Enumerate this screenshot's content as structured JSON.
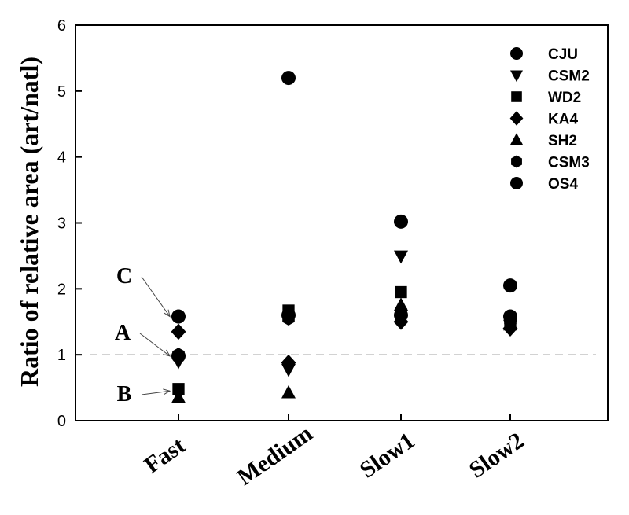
{
  "chart_data": {
    "type": "scatter",
    "title": "",
    "xlabel": "",
    "ylabel": "Ratio of relative area (art/natl)",
    "categories": [
      "Fast",
      "Medium",
      "Slow1",
      "Slow2"
    ],
    "ylim": [
      0,
      6
    ],
    "yticks": [
      0,
      1,
      2,
      3,
      4,
      5,
      6
    ],
    "reference_line": 1,
    "legend_position": "top-right",
    "series": [
      {
        "name": "CJU",
        "marker": "circle",
        "values": [
          1.58,
          5.2,
          3.02,
          2.05
        ]
      },
      {
        "name": "CSM2",
        "marker": "tri-down",
        "values": [
          0.9,
          0.78,
          2.5,
          1.45
        ]
      },
      {
        "name": "WD2",
        "marker": "square",
        "values": [
          0.48,
          1.67,
          1.95,
          1.5
        ]
      },
      {
        "name": "KA4",
        "marker": "diamond",
        "values": [
          1.35,
          0.88,
          1.5,
          1.4
        ]
      },
      {
        "name": "SH2",
        "marker": "tri-up",
        "values": [
          0.35,
          0.42,
          1.75,
          1.45
        ]
      },
      {
        "name": "CSM3",
        "marker": "hexagon",
        "values": [
          1.0,
          1.55,
          1.65,
          1.52
        ]
      },
      {
        "name": "OS4",
        "marker": "circle",
        "values": [
          0.98,
          1.6,
          1.6,
          1.58
        ]
      }
    ],
    "annotations": [
      {
        "label": "C",
        "target_category": "Fast",
        "target_value": 1.58
      },
      {
        "label": "A",
        "target_category": "Fast",
        "target_value": 0.98
      },
      {
        "label": "B",
        "target_category": "Fast",
        "target_value": 0.45
      }
    ]
  }
}
